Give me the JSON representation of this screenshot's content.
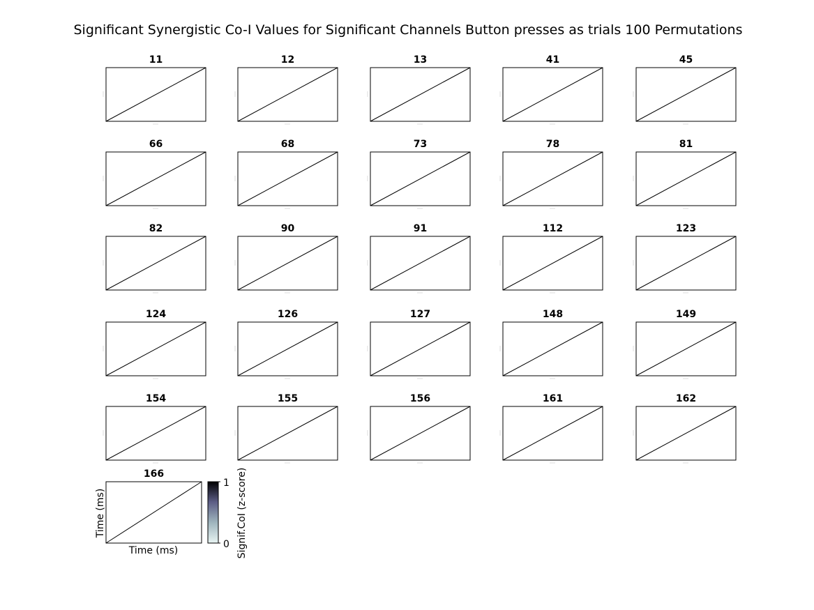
{
  "chart_data": {
    "type": "heatmap",
    "title": "Significant Synergistic Co-I Values for Significant Channels Button presses as trials 100 Permutations",
    "panels": [
      {
        "label": "11"
      },
      {
        "label": "12"
      },
      {
        "label": "13"
      },
      {
        "label": "41"
      },
      {
        "label": "45"
      },
      {
        "label": "66"
      },
      {
        "label": "68"
      },
      {
        "label": "73"
      },
      {
        "label": "78"
      },
      {
        "label": "81"
      },
      {
        "label": "82"
      },
      {
        "label": "90"
      },
      {
        "label": "91"
      },
      {
        "label": "112"
      },
      {
        "label": "123"
      },
      {
        "label": "124"
      },
      {
        "label": "126"
      },
      {
        "label": "127"
      },
      {
        "label": "148"
      },
      {
        "label": "149"
      },
      {
        "label": "154"
      },
      {
        "label": "155"
      },
      {
        "label": "156"
      },
      {
        "label": "161"
      },
      {
        "label": "162"
      },
      {
        "label": "166"
      }
    ],
    "xlabel": "Time (ms)",
    "ylabel": "Time (ms)",
    "colorbar": {
      "label": "Signif.CoI (z-score)",
      "min": 0,
      "max": 1,
      "ticks": [
        "0",
        "1"
      ],
      "colors": [
        "#e8f4f2",
        "#9fb5bd",
        "#5d5e86",
        "#000000"
      ]
    },
    "grid": false
  }
}
